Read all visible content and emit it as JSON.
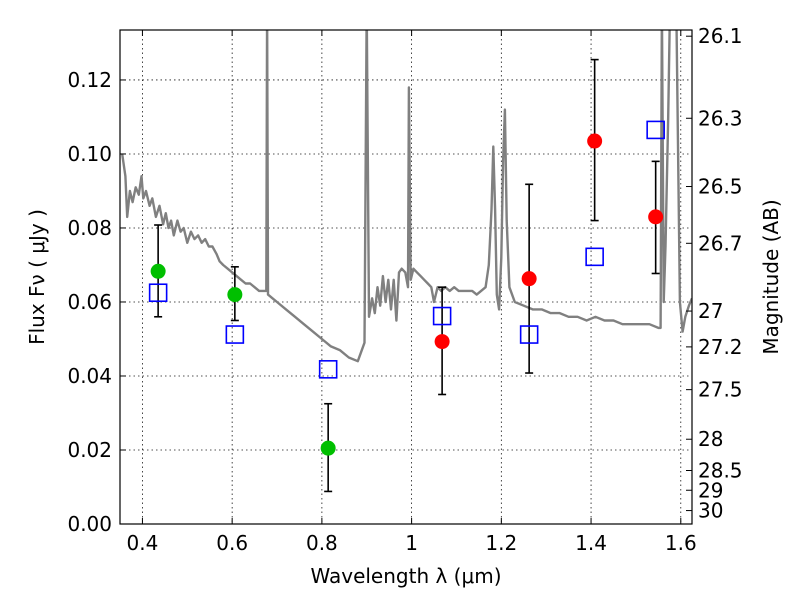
{
  "chart_data": {
    "type": "scatter",
    "xlabel": "Wavelength  λ (μm)",
    "ylabel": "Flux  Fν  ( μJy )",
    "y2label": "Magnitude (AB)",
    "xlim": [
      0.35,
      1.625
    ],
    "ylim": [
      0.0,
      0.1335
    ],
    "x_ticks": [
      0.4,
      0.6,
      0.8,
      1.0,
      1.2,
      1.4,
      1.6
    ],
    "x_tick_labels": [
      "0.4",
      "0.6",
      "0.8",
      "1",
      "1.2",
      "1.4",
      "1.6"
    ],
    "y_ticks": [
      0.0,
      0.02,
      0.04,
      0.06,
      0.08,
      0.1,
      0.12
    ],
    "y_tick_labels": [
      "0.00",
      "0.02",
      "0.04",
      "0.06",
      "0.08",
      "0.10",
      "0.12"
    ],
    "mag_ticks": [
      {
        "label": "26.1",
        "mag": 26.1
      },
      {
        "label": "26.3",
        "mag": 26.3
      },
      {
        "label": "26.5",
        "mag": 26.5
      },
      {
        "label": "26.7",
        "mag": 26.7
      },
      {
        "label": "27",
        "mag": 27.0
      },
      {
        "label": "27.2",
        "mag": 27.2
      },
      {
        "label": "27.5",
        "mag": 27.5
      },
      {
        "label": "28",
        "mag": 28.0
      },
      {
        "label": "28.5",
        "mag": 28.5
      },
      {
        "label": "29",
        "mag": 29.0
      },
      {
        "label": "30",
        "mag": 30.0
      }
    ],
    "grid": true,
    "series": [
      {
        "name": "model spectrum",
        "kind": "line",
        "color": "#808080",
        "points": [
          [
            0.355,
            0.1
          ],
          [
            0.362,
            0.094
          ],
          [
            0.366,
            0.083
          ],
          [
            0.372,
            0.09
          ],
          [
            0.378,
            0.087
          ],
          [
            0.385,
            0.091
          ],
          [
            0.392,
            0.089
          ],
          [
            0.398,
            0.094
          ],
          [
            0.402,
            0.088
          ],
          [
            0.408,
            0.09
          ],
          [
            0.416,
            0.086
          ],
          [
            0.422,
            0.088
          ],
          [
            0.43,
            0.083
          ],
          [
            0.438,
            0.086
          ],
          [
            0.446,
            0.081
          ],
          [
            0.452,
            0.084
          ],
          [
            0.458,
            0.08
          ],
          [
            0.464,
            0.082
          ],
          [
            0.47,
            0.078
          ],
          [
            0.478,
            0.082
          ],
          [
            0.485,
            0.079
          ],
          [
            0.492,
            0.08
          ],
          [
            0.5,
            0.076
          ],
          [
            0.508,
            0.079
          ],
          [
            0.516,
            0.077
          ],
          [
            0.524,
            0.078
          ],
          [
            0.532,
            0.076
          ],
          [
            0.54,
            0.077
          ],
          [
            0.548,
            0.075
          ],
          [
            0.556,
            0.075
          ],
          [
            0.565,
            0.073
          ],
          [
            0.572,
            0.071
          ],
          [
            0.58,
            0.07
          ],
          [
            0.59,
            0.069
          ],
          [
            0.6,
            0.068
          ],
          [
            0.61,
            0.067
          ],
          [
            0.62,
            0.066
          ],
          [
            0.63,
            0.065
          ],
          [
            0.64,
            0.065
          ],
          [
            0.65,
            0.064
          ],
          [
            0.66,
            0.063
          ],
          [
            0.67,
            0.063
          ],
          [
            0.676,
            0.063
          ],
          [
            0.678,
            0.14
          ],
          [
            0.68,
            0.062
          ],
          [
            0.69,
            0.061
          ],
          [
            0.7,
            0.06
          ],
          [
            0.72,
            0.058
          ],
          [
            0.74,
            0.056
          ],
          [
            0.76,
            0.054
          ],
          [
            0.78,
            0.052
          ],
          [
            0.8,
            0.05
          ],
          [
            0.82,
            0.048
          ],
          [
            0.84,
            0.047
          ],
          [
            0.86,
            0.045
          ],
          [
            0.88,
            0.044
          ],
          [
            0.895,
            0.049
          ],
          [
            0.9,
            0.14
          ],
          [
            0.905,
            0.056
          ],
          [
            0.912,
            0.061
          ],
          [
            0.918,
            0.057
          ],
          [
            0.924,
            0.064
          ],
          [
            0.93,
            0.059
          ],
          [
            0.936,
            0.067
          ],
          [
            0.942,
            0.06
          ],
          [
            0.948,
            0.066
          ],
          [
            0.954,
            0.058
          ],
          [
            0.96,
            0.066
          ],
          [
            0.966,
            0.055
          ],
          [
            0.972,
            0.068
          ],
          [
            0.978,
            0.069
          ],
          [
            0.986,
            0.068
          ],
          [
            0.992,
            0.064
          ],
          [
            0.994,
            0.118
          ],
          [
            0.998,
            0.066
          ],
          [
            1.004,
            0.069
          ],
          [
            1.012,
            0.068
          ],
          [
            1.02,
            0.067
          ],
          [
            1.028,
            0.066
          ],
          [
            1.036,
            0.065
          ],
          [
            1.044,
            0.064
          ],
          [
            1.05,
            0.06
          ],
          [
            1.058,
            0.064
          ],
          [
            1.066,
            0.063
          ],
          [
            1.075,
            0.064
          ],
          [
            1.085,
            0.063
          ],
          [
            1.095,
            0.064
          ],
          [
            1.105,
            0.063
          ],
          [
            1.115,
            0.063
          ],
          [
            1.125,
            0.063
          ],
          [
            1.135,
            0.063
          ],
          [
            1.145,
            0.062
          ],
          [
            1.155,
            0.063
          ],
          [
            1.165,
            0.064
          ],
          [
            1.172,
            0.07
          ],
          [
            1.178,
            0.085
          ],
          [
            1.182,
            0.102
          ],
          [
            1.186,
            0.085
          ],
          [
            1.19,
            0.062
          ],
          [
            1.195,
            0.058
          ],
          [
            1.2,
            0.072
          ],
          [
            1.204,
            0.098
          ],
          [
            1.208,
            0.112
          ],
          [
            1.212,
            0.082
          ],
          [
            1.218,
            0.064
          ],
          [
            1.23,
            0.06
          ],
          [
            1.25,
            0.059
          ],
          [
            1.27,
            0.058
          ],
          [
            1.29,
            0.058
          ],
          [
            1.31,
            0.057
          ],
          [
            1.33,
            0.057
          ],
          [
            1.35,
            0.056
          ],
          [
            1.37,
            0.056
          ],
          [
            1.39,
            0.055
          ],
          [
            1.41,
            0.056
          ],
          [
            1.43,
            0.055
          ],
          [
            1.45,
            0.055
          ],
          [
            1.47,
            0.054
          ],
          [
            1.49,
            0.054
          ],
          [
            1.51,
            0.054
          ],
          [
            1.53,
            0.054
          ],
          [
            1.55,
            0.053
          ],
          [
            1.555,
            0.053
          ],
          [
            1.558,
            0.14
          ],
          [
            1.562,
            0.06
          ],
          [
            1.566,
            0.075
          ],
          [
            1.572,
            0.11
          ],
          [
            1.576,
            0.14
          ],
          [
            1.59,
            0.14
          ],
          [
            1.598,
            0.06
          ],
          [
            1.604,
            0.052
          ],
          [
            1.61,
            0.056
          ],
          [
            1.618,
            0.059
          ],
          [
            1.625,
            0.061
          ]
        ]
      },
      {
        "name": "green observations",
        "kind": "errorbar",
        "color": "#00bf00",
        "points": [
          {
            "x": 0.435,
            "y": 0.0683,
            "err_low": 0.0123,
            "err_high": 0.0125
          },
          {
            "x": 0.606,
            "y": 0.062,
            "err_low": 0.007,
            "err_high": 0.0075
          },
          {
            "x": 0.814,
            "y": 0.0205,
            "err_low": 0.0117,
            "err_high": 0.012
          }
        ]
      },
      {
        "name": "red observations",
        "kind": "errorbar",
        "color": "#ff0000",
        "points": [
          {
            "x": 1.068,
            "y": 0.0493,
            "err_low": 0.0143,
            "err_high": 0.0147
          },
          {
            "x": 1.262,
            "y": 0.0663,
            "err_low": 0.0255,
            "err_high": 0.0255
          },
          {
            "x": 1.408,
            "y": 0.1035,
            "err_low": 0.0215,
            "err_high": 0.022
          },
          {
            "x": 1.544,
            "y": 0.083,
            "err_low": 0.0153,
            "err_high": 0.015
          }
        ]
      },
      {
        "name": "model photometry",
        "kind": "scatter",
        "marker": "open-square",
        "color": "#0000ff",
        "points": [
          {
            "x": 0.435,
            "y": 0.0625
          },
          {
            "x": 0.606,
            "y": 0.0512
          },
          {
            "x": 0.814,
            "y": 0.0418
          },
          {
            "x": 1.068,
            "y": 0.0562
          },
          {
            "x": 1.262,
            "y": 0.0512
          },
          {
            "x": 1.408,
            "y": 0.0722
          },
          {
            "x": 1.544,
            "y": 0.1065
          }
        ]
      }
    ]
  }
}
